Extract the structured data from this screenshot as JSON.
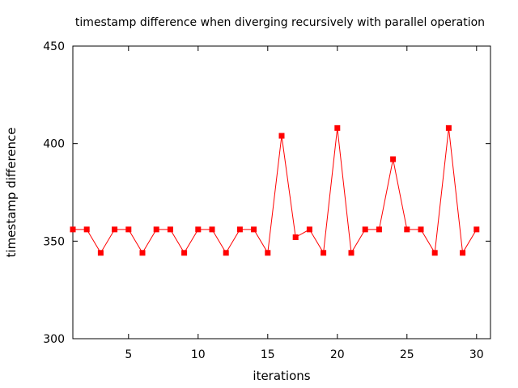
{
  "chart_data": {
    "type": "line",
    "title": "timestamp difference when diverging recursively with parallel operation",
    "xlabel": "iterations",
    "ylabel": "timestamp difference",
    "xlim": [
      1,
      31
    ],
    "ylim": [
      300,
      450
    ],
    "xticks": [
      5,
      10,
      15,
      20,
      25,
      30
    ],
    "yticks": [
      300,
      350,
      400,
      450
    ],
    "grid": false,
    "legend": "none",
    "series": [
      {
        "color": "#ff0000",
        "marker": "square",
        "x": [
          1,
          2,
          3,
          4,
          5,
          6,
          7,
          8,
          9,
          10,
          11,
          12,
          13,
          14,
          15,
          16,
          17,
          18,
          19,
          20,
          21,
          22,
          23,
          24,
          25,
          26,
          27,
          28,
          29,
          30
        ],
        "y": [
          356,
          356,
          344,
          356,
          356,
          344,
          356,
          356,
          344,
          356,
          356,
          344,
          356,
          356,
          344,
          404,
          352,
          356,
          344,
          408,
          344,
          356,
          356,
          392,
          356,
          356,
          344,
          408,
          344,
          356
        ]
      }
    ]
  }
}
